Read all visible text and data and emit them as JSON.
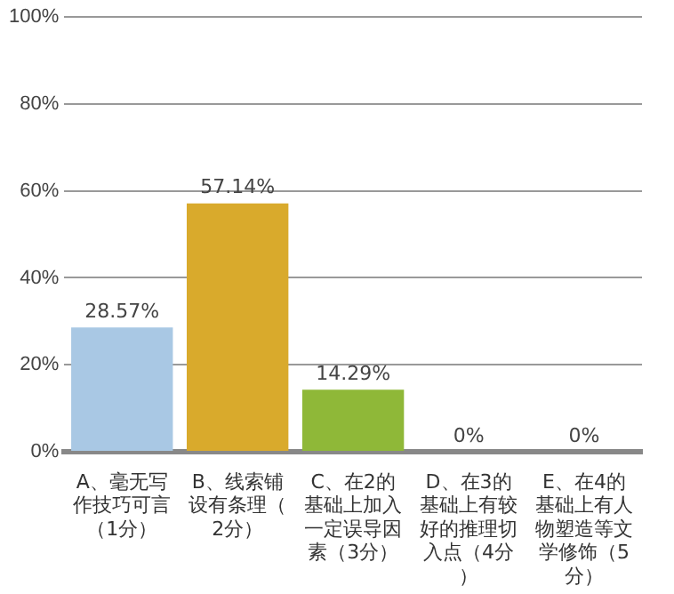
{
  "chart_data": {
    "type": "bar",
    "categories": [
      "A、毫无写作技巧可言（1分）",
      "B、线索铺设有条理（2分）",
      "C、在2的基础上加入一定误导因素（3分）",
      "D、在3的基础上有较好的推理切入点（4分）",
      "E、在4的基础上有人物塑造等文学修饰（5分）"
    ],
    "values": [
      28.57,
      57.14,
      14.29,
      0,
      0
    ],
    "colors": [
      "#a9c8e4",
      "#d9aa2c",
      "#8fb838",
      "#f0956a",
      "#3aaeae"
    ],
    "value_labels": [
      "28.57%",
      "57.14%",
      "14.29%",
      "0%",
      "0%"
    ],
    "ylim": [
      0,
      100
    ],
    "yticks": [
      {
        "value": 0,
        "label": "0%"
      },
      {
        "value": 20,
        "label": "20%"
      },
      {
        "value": 40,
        "label": "40%"
      },
      {
        "value": 60,
        "label": "60%"
      },
      {
        "value": 80,
        "label": "80%"
      },
      {
        "value": 100,
        "label": "100%"
      }
    ],
    "grid": "y",
    "legend": false
  }
}
